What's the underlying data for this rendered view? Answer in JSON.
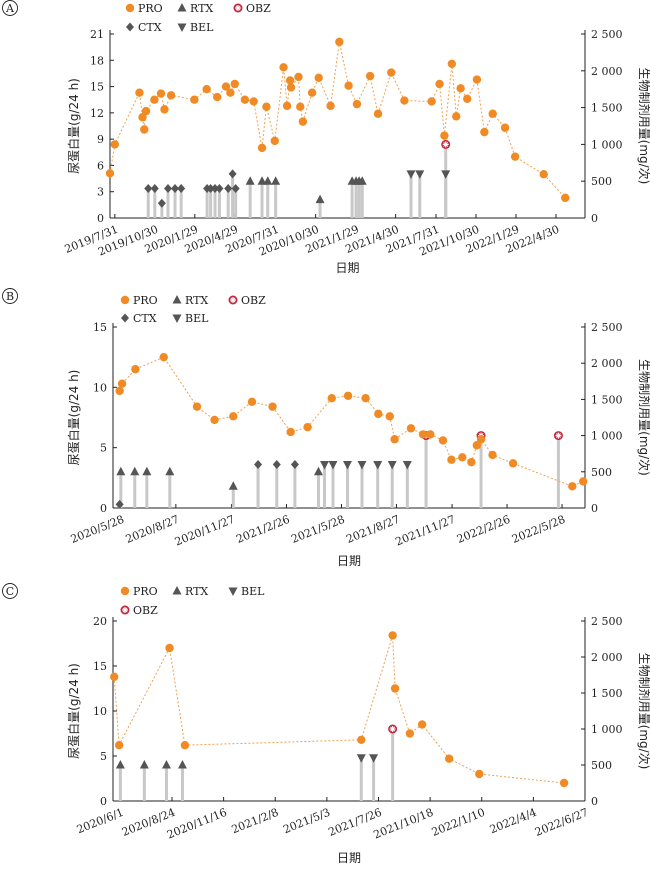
{
  "colors": {
    "pro": "#f08a24",
    "marker_dark": "#555555",
    "obz": "#c0283c",
    "stem": "#c8c8c8",
    "axis": "#222222"
  },
  "legend_labels": {
    "PRO": "PRO",
    "RTX": "RTX",
    "OBZ": "OBZ",
    "CTX": "CTX",
    "BEL": "BEL"
  },
  "chart_data": [
    {
      "type": "line",
      "panel_label": "A",
      "xlabel": "日期",
      "ylabel_left": "尿蛋白量(g/24 h)",
      "ylabel_right": "生物制剂用量(mg/次)",
      "xlim": [
        "2019-07-20",
        "2022-07-05"
      ],
      "ylim_left": [
        0,
        21
      ],
      "ylim_right": [
        0,
        2500
      ],
      "yticks_left": [
        "0",
        "3",
        "6",
        "9",
        "12",
        "15",
        "18",
        "21"
      ],
      "yticks_right": [
        "0",
        "500",
        "1 000",
        "1 500",
        "2 000",
        "2 500"
      ],
      "xticks": [
        {
          "date": "2019-07-31",
          "label": "2019/7/31"
        },
        {
          "date": "2019-10-30",
          "label": "2019/10/30"
        },
        {
          "date": "2020-01-29",
          "label": "2020/1/29"
        },
        {
          "date": "2020-04-29",
          "label": "2020/4/29"
        },
        {
          "date": "2020-07-31",
          "label": "2020/7/31"
        },
        {
          "date": "2020-10-30",
          "label": "2020/10/30"
        },
        {
          "date": "2021-01-29",
          "label": "2021/1/29"
        },
        {
          "date": "2021-04-30",
          "label": "2021/4/30"
        },
        {
          "date": "2021-07-31",
          "label": "2021/7/31"
        },
        {
          "date": "2021-10-30",
          "label": "2021/10/30"
        },
        {
          "date": "2022-01-29",
          "label": "2022/1/29"
        },
        {
          "date": "2022-04-30",
          "label": "2022/4/30"
        }
      ],
      "legend": [
        "PRO",
        "RTX",
        "OBZ",
        "CTX",
        "BEL"
      ],
      "pro": [
        [
          "2019-07-20",
          5.1
        ],
        [
          "2019-07-31",
          8.4
        ],
        [
          "2019-09-25",
          14.3
        ],
        [
          "2019-10-02",
          11.5
        ],
        [
          "2019-10-06",
          10.1
        ],
        [
          "2019-10-10",
          12.2
        ],
        [
          "2019-10-29",
          13.5
        ],
        [
          "2019-11-13",
          14.2
        ],
        [
          "2019-11-21",
          12.4
        ],
        [
          "2019-12-06",
          14.0
        ],
        [
          "2020-01-28",
          13.5
        ],
        [
          "2020-02-25",
          14.7
        ],
        [
          "2020-03-20",
          13.8
        ],
        [
          "2020-04-09",
          15.0
        ],
        [
          "2020-04-19",
          14.3
        ],
        [
          "2020-04-29",
          15.3
        ],
        [
          "2020-05-22",
          13.5
        ],
        [
          "2020-06-11",
          13.3
        ],
        [
          "2020-06-30",
          8.0
        ],
        [
          "2020-07-10",
          12.7
        ],
        [
          "2020-07-29",
          8.8
        ],
        [
          "2020-08-18",
          17.2
        ],
        [
          "2020-08-26",
          12.8
        ],
        [
          "2020-09-02",
          15.7
        ],
        [
          "2020-09-04",
          14.9
        ],
        [
          "2020-09-21",
          16.1
        ],
        [
          "2020-09-25",
          12.7
        ],
        [
          "2020-10-01",
          11.0
        ],
        [
          "2020-10-22",
          14.3
        ],
        [
          "2020-11-06",
          16.0
        ],
        [
          "2020-12-03",
          12.8
        ],
        [
          "2020-12-23",
          20.1
        ],
        [
          "2021-01-13",
          15.1
        ],
        [
          "2021-02-01",
          13.0
        ],
        [
          "2021-03-03",
          16.2
        ],
        [
          "2021-03-21",
          11.9
        ],
        [
          "2021-04-20",
          16.6
        ],
        [
          "2021-05-20",
          13.4
        ],
        [
          "2021-07-21",
          13.3
        ],
        [
          "2021-08-08",
          15.3
        ],
        [
          "2021-08-19",
          9.4
        ],
        [
          "2021-09-05",
          17.6
        ],
        [
          "2021-09-15",
          11.6
        ],
        [
          "2021-09-25",
          14.8
        ],
        [
          "2021-10-10",
          13.6
        ],
        [
          "2021-11-01",
          15.8
        ],
        [
          "2021-11-18",
          9.8
        ],
        [
          "2021-12-07",
          11.9
        ],
        [
          "2022-01-04",
          10.3
        ],
        [
          "2022-01-27",
          7.0
        ],
        [
          "2022-04-02",
          5.0
        ],
        [
          "2022-05-21",
          2.3
        ]
      ],
      "rtx": [
        [
          "2020-06-03",
          500
        ],
        [
          "2020-06-30",
          500
        ],
        [
          "2020-07-13",
          500
        ],
        [
          "2020-07-31",
          500
        ],
        [
          "2020-11-09",
          250
        ],
        [
          "2021-01-21",
          500
        ],
        [
          "2021-01-30",
          500
        ],
        [
          "2021-02-06",
          500
        ],
        [
          "2021-02-13",
          500
        ]
      ],
      "ctx": [
        [
          "2019-10-15",
          400
        ],
        [
          "2019-10-30",
          400
        ],
        [
          "2019-11-15",
          200
        ],
        [
          "2019-11-29",
          400
        ],
        [
          "2019-12-15",
          400
        ],
        [
          "2019-12-29",
          400
        ],
        [
          "2020-02-26",
          400
        ],
        [
          "2020-03-05",
          400
        ],
        [
          "2020-03-15",
          400
        ],
        [
          "2020-03-25",
          400
        ],
        [
          "2020-04-14",
          400
        ],
        [
          "2020-04-24",
          600
        ],
        [
          "2020-05-01",
          400
        ]
      ],
      "bel": [
        [
          "2021-06-04",
          600
        ],
        [
          "2021-06-24",
          600
        ],
        [
          "2021-08-22",
          600
        ]
      ],
      "obz": [
        [
          "2021-08-22",
          1000
        ]
      ]
    },
    {
      "type": "line",
      "panel_label": "B",
      "xlabel": "日期",
      "ylabel_left": "尿蛋白量(g/24 h)",
      "ylabel_right": "生物制剂用量(mg/次)",
      "xlim": [
        "2020-05-15",
        "2022-07-05"
      ],
      "ylim_left": [
        0,
        15
      ],
      "ylim_right": [
        0,
        2500
      ],
      "yticks_left": [
        "0",
        "5",
        "10",
        "15"
      ],
      "yticks_right": [
        "0",
        "500",
        "1 000",
        "1 500",
        "2 000",
        "2 500"
      ],
      "xticks": [
        {
          "date": "2020-05-28",
          "label": "2020/5/28"
        },
        {
          "date": "2020-08-27",
          "label": "2020/8/27"
        },
        {
          "date": "2020-11-27",
          "label": "2020/11/27"
        },
        {
          "date": "2021-02-26",
          "label": "2021/2/26"
        },
        {
          "date": "2021-05-28",
          "label": "2021/5/28"
        },
        {
          "date": "2021-08-27",
          "label": "2021/8/27"
        },
        {
          "date": "2021-11-27",
          "label": "2021/11/27"
        },
        {
          "date": "2022-02-26",
          "label": "2022/2/26"
        },
        {
          "date": "2022-05-28",
          "label": "2022/5/28"
        }
      ],
      "legend": [
        "PRO",
        "RTX",
        "OBZ",
        "CTX",
        "BEL"
      ],
      "pro": [
        [
          "2020-05-26",
          9.7
        ],
        [
          "2020-05-30",
          10.3
        ],
        [
          "2020-06-21",
          11.5
        ],
        [
          "2020-08-07",
          12.5
        ],
        [
          "2020-10-01",
          8.4
        ],
        [
          "2020-10-30",
          7.3
        ],
        [
          "2020-11-30",
          7.6
        ],
        [
          "2020-12-31",
          8.8
        ],
        [
          "2021-02-03",
          8.4
        ],
        [
          "2021-03-05",
          6.3
        ],
        [
          "2021-04-02",
          6.7
        ],
        [
          "2021-05-12",
          9.1
        ],
        [
          "2021-06-08",
          9.3
        ],
        [
          "2021-07-07",
          9.1
        ],
        [
          "2021-07-28",
          7.8
        ],
        [
          "2021-08-16",
          7.6
        ],
        [
          "2021-08-24",
          5.7
        ],
        [
          "2021-09-20",
          6.6
        ],
        [
          "2021-10-10",
          6.1
        ],
        [
          "2021-10-22",
          6.1
        ],
        [
          "2021-11-12",
          5.6
        ],
        [
          "2021-11-26",
          4.0
        ],
        [
          "2021-12-14",
          4.2
        ],
        [
          "2021-12-29",
          3.8
        ],
        [
          "2022-01-07",
          5.2
        ],
        [
          "2022-01-14",
          5.7
        ],
        [
          "2022-02-02",
          4.4
        ],
        [
          "2022-03-08",
          3.7
        ],
        [
          "2022-06-14",
          1.8
        ],
        [
          "2022-07-02",
          2.2
        ]
      ],
      "rtx": [
        [
          "2020-05-28",
          500
        ],
        [
          "2020-06-20",
          500
        ],
        [
          "2020-07-10",
          500
        ],
        [
          "2020-08-17",
          500
        ],
        [
          "2020-11-30",
          300
        ],
        [
          "2021-04-20",
          500
        ]
      ],
      "ctx": [
        [
          "2020-05-26",
          50
        ],
        [
          "2021-01-10",
          600
        ],
        [
          "2021-02-10",
          600
        ],
        [
          "2021-03-12",
          600
        ]
      ],
      "bel": [
        [
          "2021-04-30",
          600
        ],
        [
          "2021-05-14",
          600
        ],
        [
          "2021-06-07",
          600
        ],
        [
          "2021-07-01",
          600
        ],
        [
          "2021-07-27",
          600
        ],
        [
          "2021-08-20",
          600
        ],
        [
          "2021-09-14",
          600
        ]
      ],
      "obz": [
        [
          "2021-10-15",
          1000
        ],
        [
          "2022-01-14",
          1000
        ],
        [
          "2022-05-22",
          1000
        ]
      ]
    },
    {
      "type": "line",
      "panel_label": "C",
      "xlabel": "日期",
      "ylabel_left": "尿蛋白量(g/24 h)",
      "ylabel_right": "生物制剂用量(mg/次)",
      "xlim": [
        "2020-05-20",
        "2022-06-27"
      ],
      "ylim_left": [
        0,
        20
      ],
      "ylim_right": [
        0,
        2500
      ],
      "yticks_left": [
        "0",
        "5",
        "10",
        "15",
        "20"
      ],
      "yticks_right": [
        "0",
        "500",
        "1 000",
        "1 500",
        "2 000",
        "2 500"
      ],
      "xticks": [
        {
          "date": "2020-06-01",
          "label": "2020/6/1"
        },
        {
          "date": "2020-08-24",
          "label": "2020/8/24"
        },
        {
          "date": "2020-11-16",
          "label": "2020/11/16"
        },
        {
          "date": "2021-02-08",
          "label": "2021/2/8"
        },
        {
          "date": "2021-05-03",
          "label": "2021/5/3"
        },
        {
          "date": "2021-07-26",
          "label": "2021/7/26"
        },
        {
          "date": "2021-10-18",
          "label": "2021/10/18"
        },
        {
          "date": "2022-01-10",
          "label": "2022/1/10"
        },
        {
          "date": "2022-04-04",
          "label": "2022/4/4"
        },
        {
          "date": "2022-06-27",
          "label": "2022/6/27"
        }
      ],
      "legend": [
        "PRO",
        "RTX",
        "BEL",
        "OBZ"
      ],
      "pro": [
        [
          "2020-05-22",
          13.8
        ],
        [
          "2020-05-30",
          6.2
        ],
        [
          "2020-08-20",
          17.0
        ],
        [
          "2020-09-14",
          6.2
        ],
        [
          "2021-06-28",
          6.8
        ],
        [
          "2021-08-18",
          18.4
        ],
        [
          "2021-08-22",
          12.5
        ],
        [
          "2021-09-15",
          7.5
        ],
        [
          "2021-10-05",
          8.5
        ],
        [
          "2021-11-18",
          4.7
        ],
        [
          "2022-01-06",
          3.0
        ],
        [
          "2022-05-24",
          2.0
        ]
      ],
      "rtx": [
        [
          "2020-06-01",
          500
        ],
        [
          "2020-07-10",
          500
        ],
        [
          "2020-08-15",
          500
        ],
        [
          "2020-09-10",
          500
        ]
      ],
      "bel": [
        [
          "2021-06-28",
          600
        ],
        [
          "2021-07-18",
          600
        ]
      ],
      "obz": [
        [
          "2021-08-18",
          1000
        ]
      ]
    }
  ]
}
